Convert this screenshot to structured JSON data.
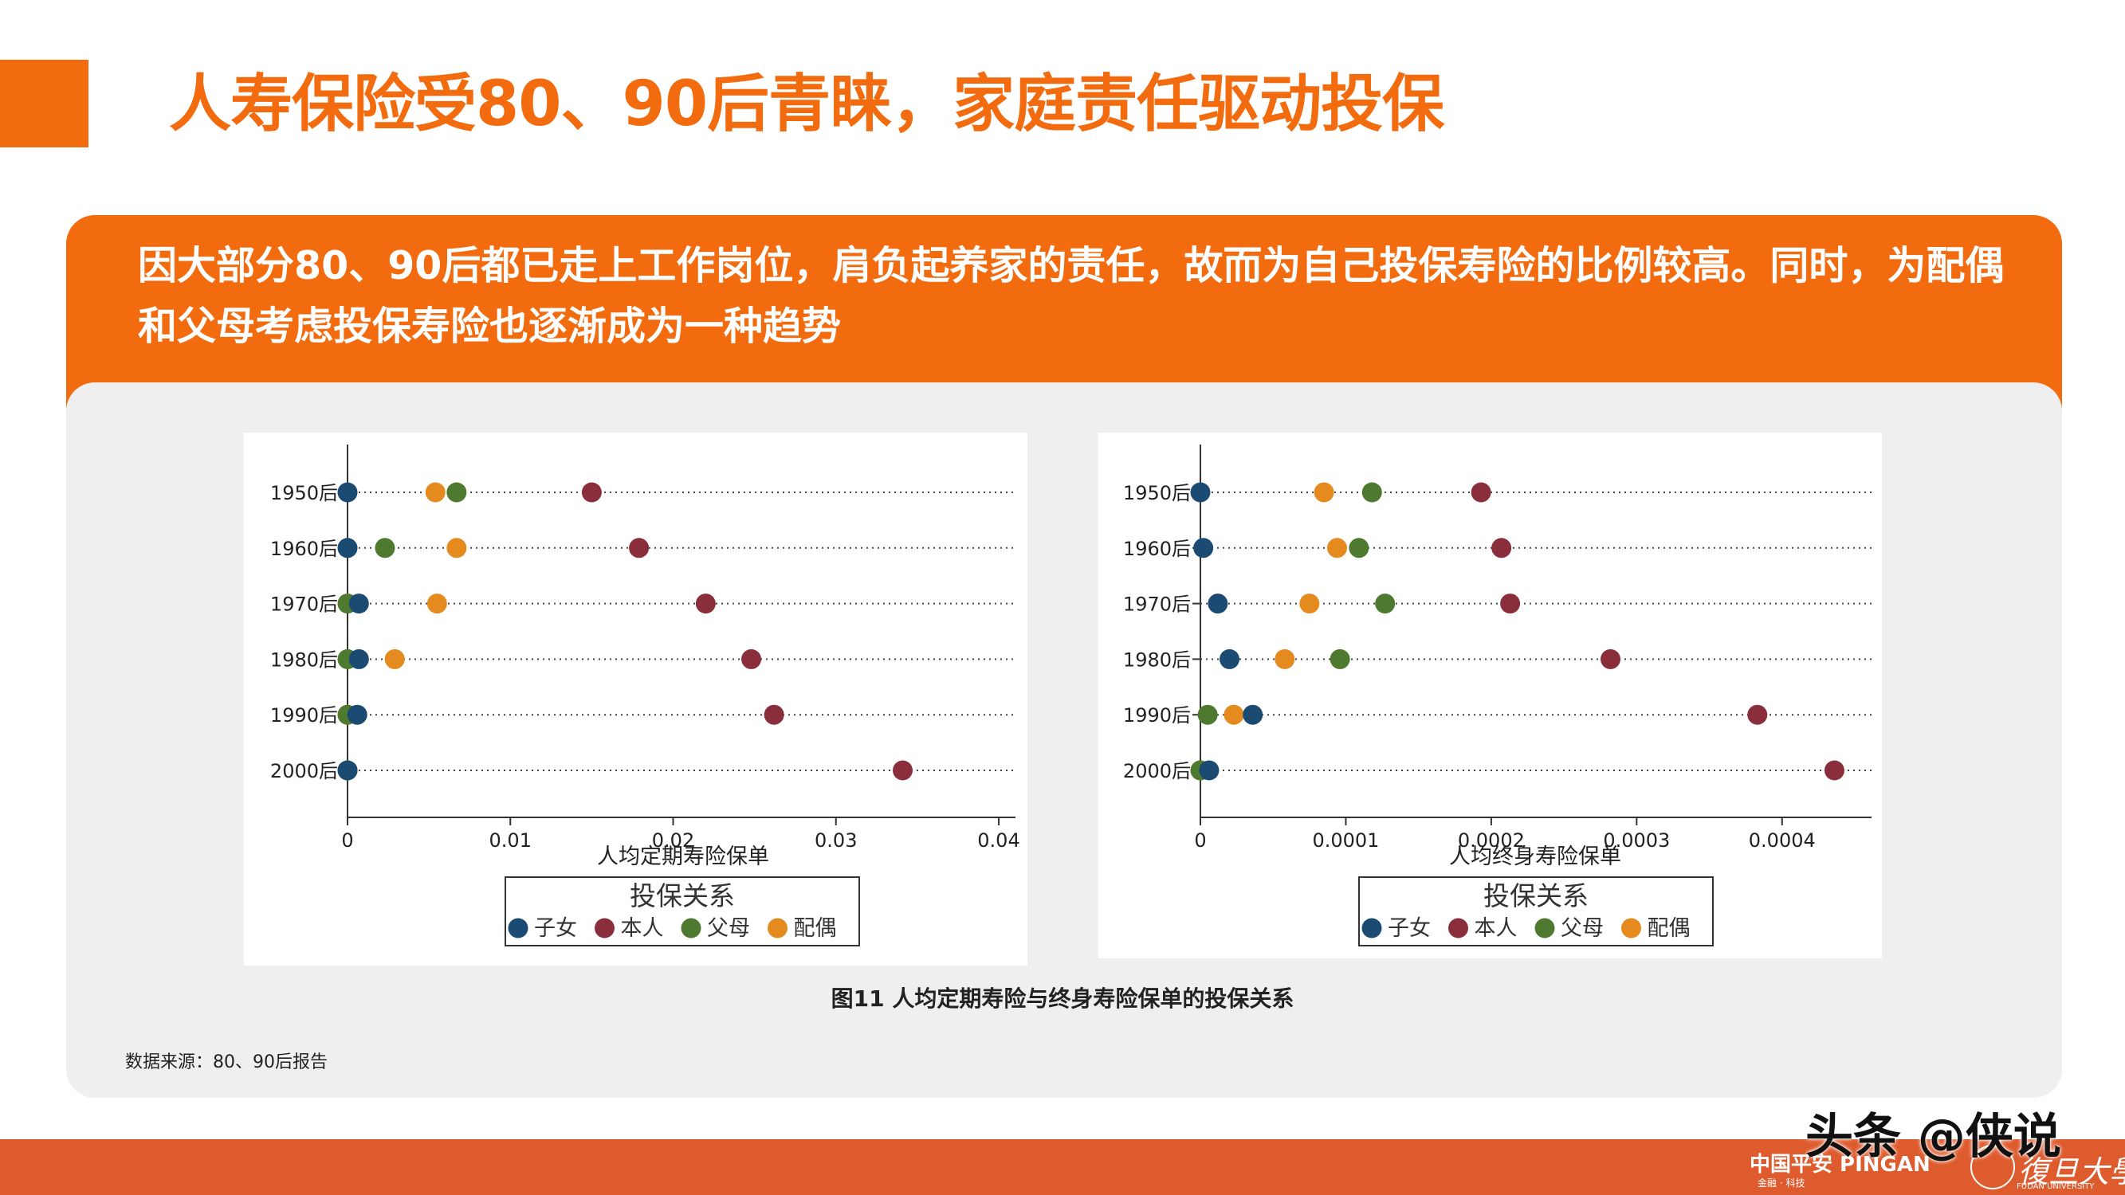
{
  "header": {
    "title": "人寿保险受80、90后青睐，家庭责任驱动投保"
  },
  "banner": {
    "text": "因大部分80、90后都已走上工作岗位，肩负起养家的责任，故而为自己投保寿险的比例较高。同时，为配偶和父母考虑投保寿险也逐渐成为一种趋势"
  },
  "colors": {
    "accent": "#f26b0f",
    "footer": "#de5b2e",
    "子女": "#1b4a72",
    "本人": "#8b2e3c",
    "父母": "#4d7a2e",
    "配偶": "#e58a1f"
  },
  "chart_data": [
    {
      "type": "scatter",
      "subtype": "dot-plot",
      "categories": [
        "1950后",
        "1960后",
        "1970后",
        "1980后",
        "1990后",
        "2000后"
      ],
      "xlabel": "人均定期寿险保单",
      "ylabel": "",
      "xlim": [
        0,
        0.04
      ],
      "xticks": [
        0,
        0.01,
        0.02,
        0.03,
        0.04
      ],
      "xtick_labels": [
        "0",
        "0.01",
        "0.02",
        "0.03",
        "0.04"
      ],
      "legend_title": "投保关系",
      "legend_position": "bottom",
      "grid": "dotted horizontal",
      "series": [
        {
          "name": "子女",
          "values": [
            0.0,
            0.0,
            0.0007,
            0.0007,
            0.0006,
            0.0
          ]
        },
        {
          "name": "本人",
          "values": [
            0.015,
            0.0179,
            0.022,
            0.0248,
            0.0262,
            0.0341
          ]
        },
        {
          "name": "父母",
          "values": [
            0.0067,
            0.0023,
            0.0,
            0.0,
            0.0,
            0.0
          ]
        },
        {
          "name": "配偶",
          "values": [
            0.0054,
            0.0067,
            0.0055,
            0.0029,
            0.0,
            0.0
          ]
        }
      ]
    },
    {
      "type": "scatter",
      "subtype": "dot-plot",
      "categories": [
        "1950后",
        "1960后",
        "1970后",
        "1980后",
        "1990后",
        "2000后"
      ],
      "xlabel": "人均终身寿险保单",
      "ylabel": "",
      "xlim": [
        0,
        0.00045
      ],
      "xticks": [
        0,
        0.0001,
        0.0002,
        0.0003,
        0.0004
      ],
      "xtick_labels": [
        "0",
        "0.0001",
        "0.0002",
        "0.0003",
        "0.0004"
      ],
      "legend_title": "投保关系",
      "legend_position": "bottom",
      "grid": "dotted horizontal",
      "series": [
        {
          "name": "子女",
          "values": [
            0.0,
            2e-06,
            1.2e-05,
            2e-05,
            3.6e-05,
            6e-06
          ]
        },
        {
          "name": "本人",
          "values": [
            0.000193,
            0.000207,
            0.000213,
            0.000282,
            0.000383,
            0.000436
          ]
        },
        {
          "name": "父母",
          "values": [
            0.000118,
            0.000109,
            0.000127,
            9.6e-05,
            5e-06,
            0.0
          ]
        },
        {
          "name": "配偶",
          "values": [
            8.5e-05,
            9.4e-05,
            7.5e-05,
            5.8e-05,
            2.3e-05,
            0.0
          ]
        }
      ]
    }
  ],
  "figure": {
    "caption": "图11 人均定期寿险与终身寿险保单的投保关系"
  },
  "source": {
    "note": "数据来源：80、90后报告"
  },
  "footer": {
    "logo_main": "中国平安 PINGAN",
    "logo_sub": "金融 · 科技",
    "watermark": "头条 @侠说",
    "university": "復旦大學",
    "university_sub": "FUDAN UNIVERSITY"
  }
}
